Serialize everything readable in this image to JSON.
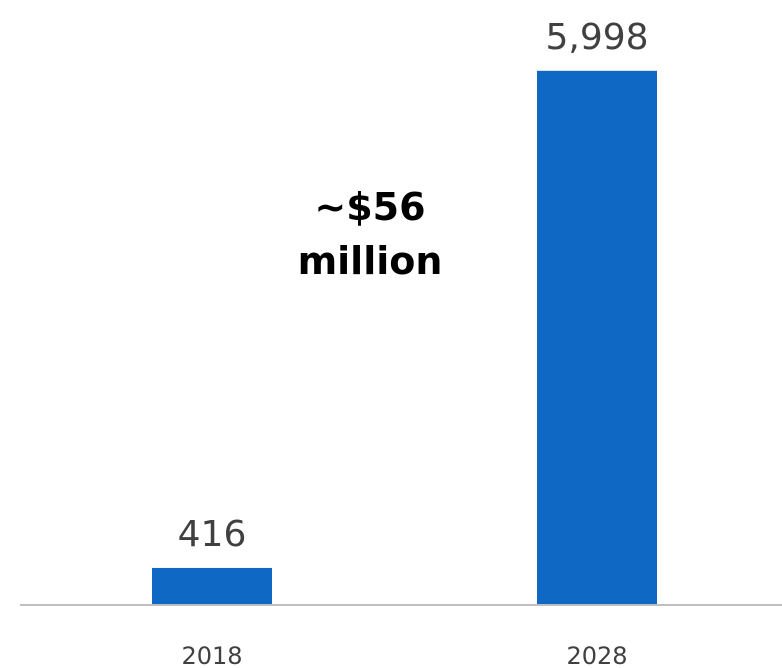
{
  "chart_data": {
    "type": "bar",
    "categories": [
      "2018",
      "2028"
    ],
    "values": [
      416,
      5998
    ],
    "data_labels": [
      "416",
      "5,998"
    ],
    "annotation": [
      "~$56",
      "million"
    ],
    "title": "",
    "xlabel": "",
    "ylabel": "",
    "ylim": [
      0,
      6400
    ],
    "grid": false,
    "legend": "none",
    "bar_color": "#0f69c4",
    "axis_color": "#bfbfbf"
  }
}
